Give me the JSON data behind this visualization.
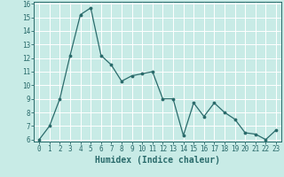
{
  "x": [
    0,
    1,
    2,
    3,
    4,
    5,
    6,
    7,
    8,
    9,
    10,
    11,
    12,
    13,
    14,
    15,
    16,
    17,
    18,
    19,
    20,
    21,
    22,
    23
  ],
  "y": [
    6.0,
    7.0,
    9.0,
    12.2,
    15.2,
    15.7,
    12.2,
    11.5,
    10.3,
    10.7,
    10.85,
    11.0,
    9.0,
    9.0,
    6.3,
    8.7,
    7.7,
    8.7,
    8.0,
    7.5,
    6.5,
    6.4,
    6.0,
    6.7
  ],
  "xlabel": "Humidex (Indice chaleur)",
  "ylim": [
    6,
    16
  ],
  "xlim": [
    -0.5,
    23.5
  ],
  "yticks": [
    6,
    7,
    8,
    9,
    10,
    11,
    12,
    13,
    14,
    15,
    16
  ],
  "xticks": [
    0,
    1,
    2,
    3,
    4,
    5,
    6,
    7,
    8,
    9,
    10,
    11,
    12,
    13,
    14,
    15,
    16,
    17,
    18,
    19,
    20,
    21,
    22,
    23
  ],
  "line_color": "#2a6b6b",
  "marker_color": "#2a6b6b",
  "bg_color": "#c8ebe6",
  "grid_color": "#ffffff",
  "axis_color": "#2a6b6b",
  "label_color": "#2a6b6b",
  "tick_fontsize": 5.5,
  "xlabel_fontsize": 7.0
}
